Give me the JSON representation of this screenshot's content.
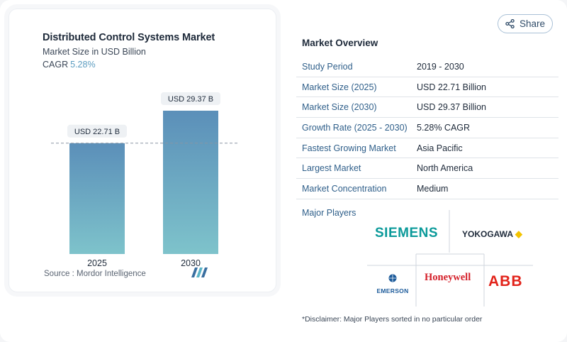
{
  "chart": {
    "title": "Distributed Control Systems Market",
    "subtitle": "Market Size in USD Billion",
    "cagr_label": "CAGR",
    "cagr_value": "5.28%",
    "source": "Source :  Mordor Intelligence"
  },
  "chart_data": {
    "type": "bar",
    "title": "Distributed Control Systems Market",
    "subtitle": "Market Size in USD Billion",
    "categories": [
      "2025",
      "2030"
    ],
    "values": [
      22.71,
      29.37
    ],
    "data_labels": [
      "USD 22.71 B",
      "USD 29.37 B"
    ],
    "ylim": [
      0,
      29.37
    ],
    "reference_line": 22.71,
    "grid": false,
    "colors": {
      "bar_top": "#5b8fb9",
      "bar_bottom": "#7ec3cb"
    }
  },
  "share": {
    "label": "Share"
  },
  "overview": {
    "title": "Market Overview",
    "rows": [
      {
        "key": "Study Period",
        "value": "2019 - 2030"
      },
      {
        "key": "Market Size (2025)",
        "value": "USD 22.71 Billion"
      },
      {
        "key": "Market Size (2030)",
        "value": "USD 29.37 Billion"
      },
      {
        "key": "Growth Rate (2025 - 2030)",
        "value": "5.28% CAGR"
      },
      {
        "key": "Fastest Growing Market",
        "value": "Asia Pacific"
      },
      {
        "key": "Largest Market",
        "value": "North America"
      },
      {
        "key": "Market Concentration",
        "value": "Medium"
      }
    ],
    "players_title": "Major Players",
    "players": [
      "SIEMENS",
      "YOKOGAWA",
      "EMERSON",
      "Honeywell",
      "ABB"
    ],
    "disclaimer": "*Disclaimer: Major Players sorted in no particular order"
  },
  "colors": {
    "accent": "#2f5f8a",
    "cagr": "#5b9cc0",
    "siemens": "#0b9a9a",
    "honeywell": "#d4202a",
    "abb": "#e2231a",
    "emerson": "#1b5a9a"
  }
}
